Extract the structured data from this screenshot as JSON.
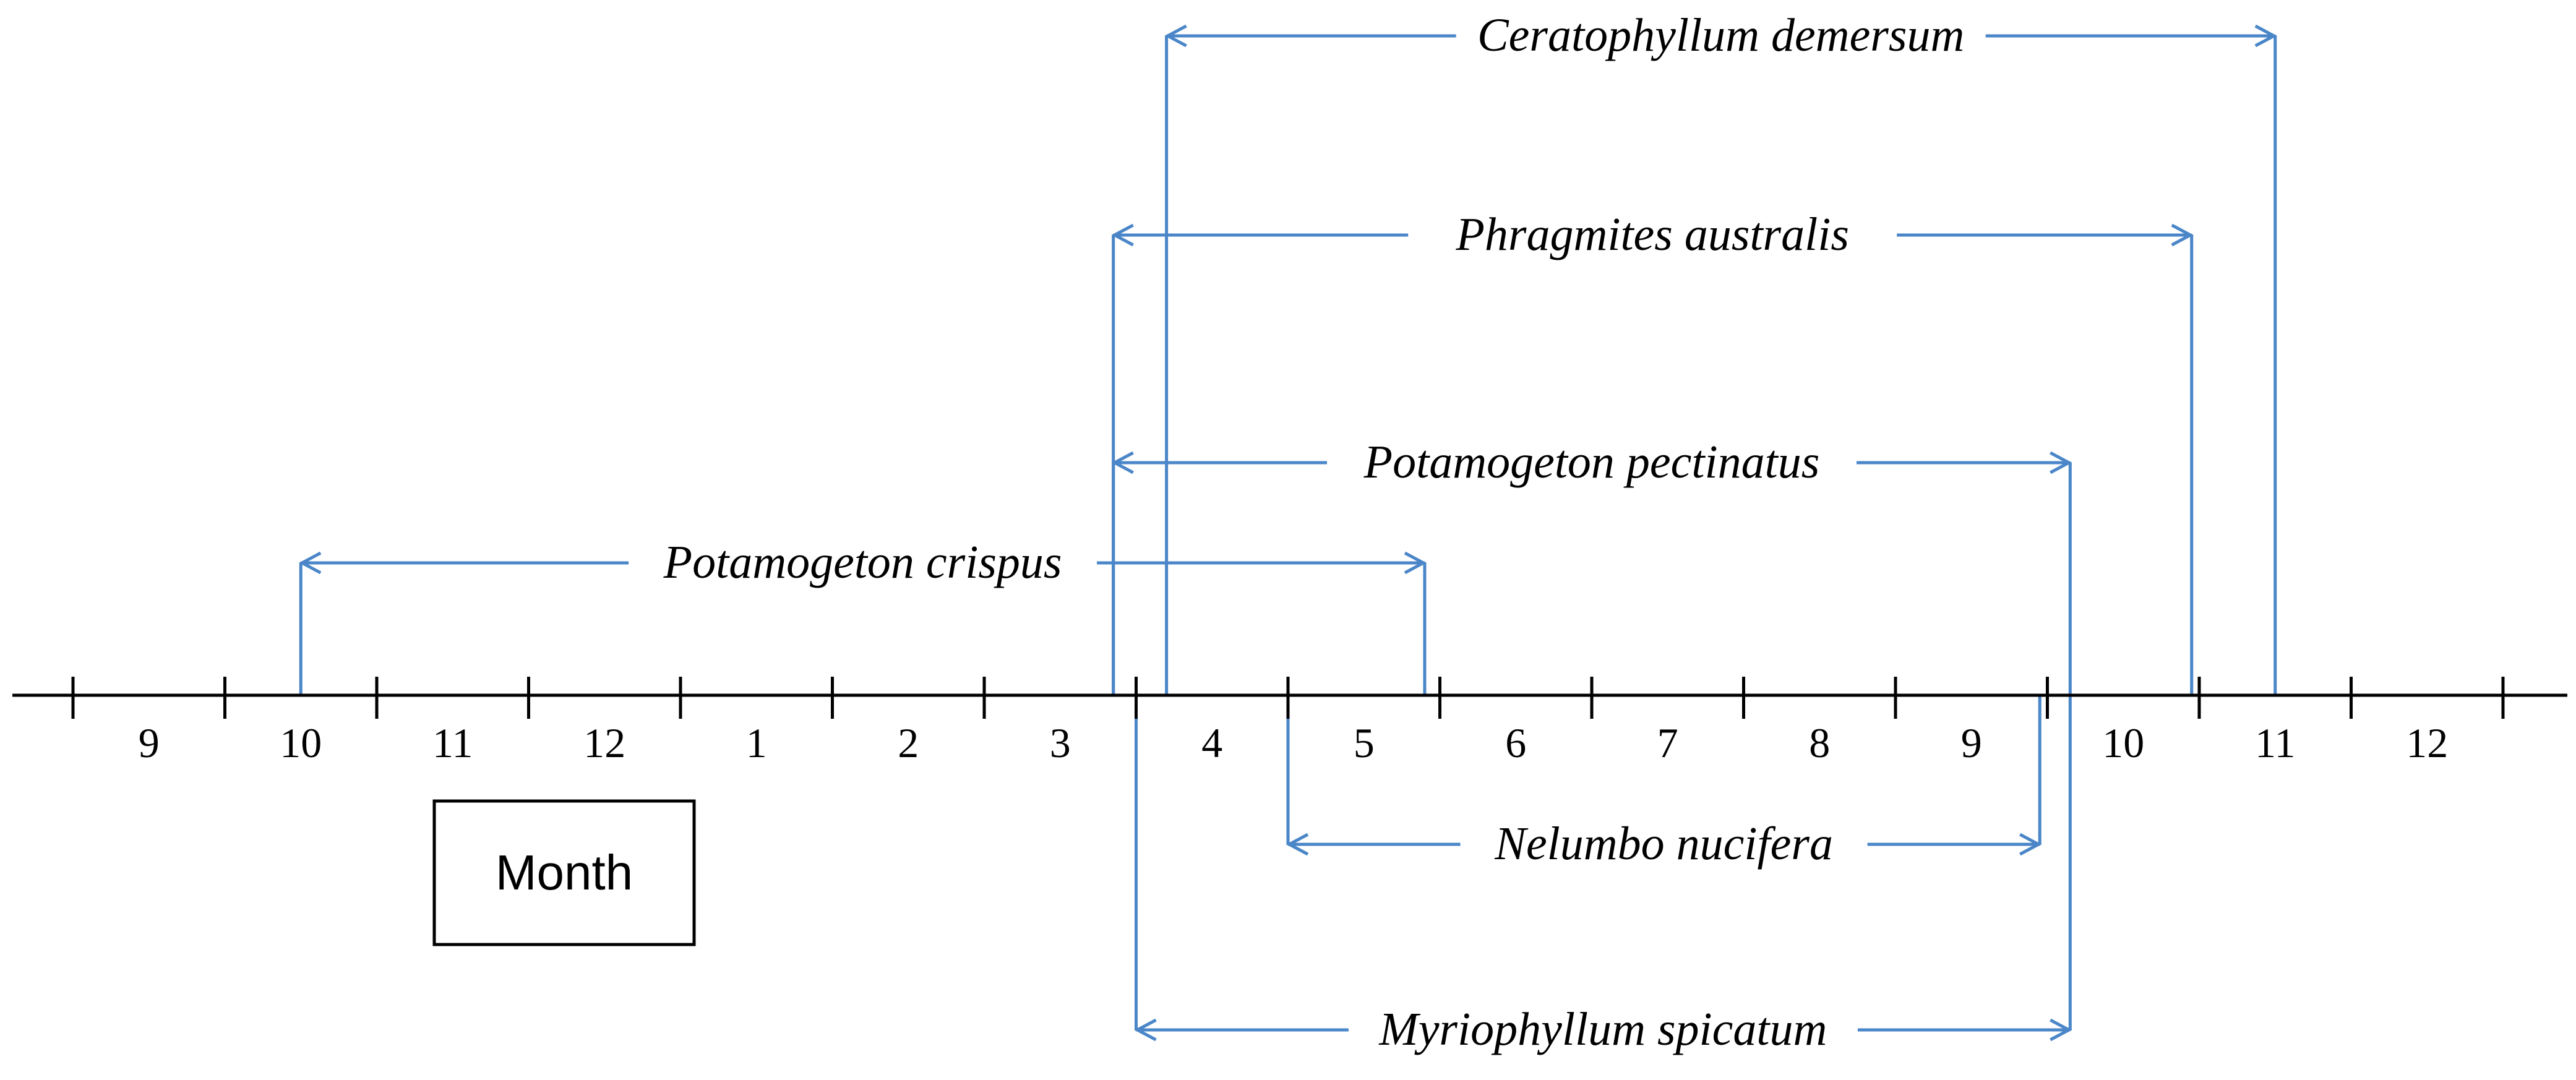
{
  "diagram": {
    "months": [
      "9",
      "10",
      "11",
      "12",
      "1",
      "2",
      "3",
      "4",
      "5",
      "6",
      "7",
      "8",
      "9",
      "10",
      "11",
      "12"
    ],
    "legend_label": "Month",
    "line_color": "#4a86c8",
    "species": [
      {
        "name": "Ceratophyllum demersum",
        "start": 7.2,
        "end": 14.5,
        "side": "above",
        "level": 4
      },
      {
        "name": "Phragmites australis",
        "start": 6.85,
        "end": 13.95,
        "side": "above",
        "level": 3
      },
      {
        "name": "Potamogeton pectinatus",
        "start": 6.85,
        "end": 13.15,
        "side": "above",
        "level": 2
      },
      {
        "name": "Potamogeton crispus",
        "start": 1.5,
        "end": 8.9,
        "side": "above",
        "level": 1
      },
      {
        "name": "Nelumbo nucifera",
        "start": 8.0,
        "end": 12.95,
        "side": "below",
        "level": 1
      },
      {
        "name": "Myriophyllum spicatum",
        "start": 7.0,
        "end": 13.15,
        "side": "below",
        "level": 2
      }
    ]
  }
}
